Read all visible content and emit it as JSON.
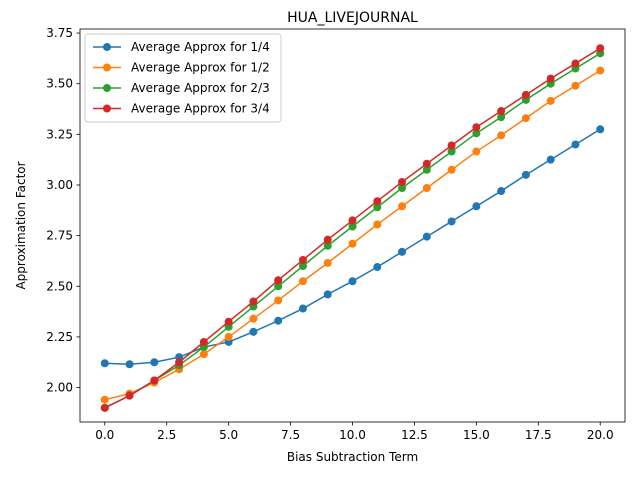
{
  "chart_data": {
    "type": "line",
    "title": "HUA_LIVEJOURNAL",
    "xlabel": "Bias Subtraction Term",
    "ylabel": "Approximation Factor",
    "xlim": [
      -1.0,
      21.0
    ],
    "ylim": [
      1.83,
      3.77
    ],
    "xticks": [
      0.0,
      2.5,
      5.0,
      7.5,
      10.0,
      12.5,
      15.0,
      17.5,
      20.0
    ],
    "xtick_labels": [
      "0.0",
      "2.5",
      "5.0",
      "7.5",
      "10.0",
      "12.5",
      "15.0",
      "17.5",
      "20.0"
    ],
    "yticks": [
      2.0,
      2.25,
      2.5,
      2.75,
      3.0,
      3.25,
      3.5,
      3.75
    ],
    "ytick_labels": [
      "2.00",
      "2.25",
      "2.50",
      "2.75",
      "3.00",
      "3.25",
      "3.50",
      "3.75"
    ],
    "grid": false,
    "legend_position": "upper left",
    "x": [
      0,
      1,
      2,
      3,
      4,
      5,
      6,
      7,
      8,
      9,
      10,
      11,
      12,
      13,
      14,
      15,
      16,
      17,
      18,
      19,
      20
    ],
    "series": [
      {
        "name": "Average Approx for 1/4",
        "color": "#1f77b4",
        "values": [
          2.12,
          2.115,
          2.125,
          2.15,
          2.2,
          2.225,
          2.275,
          2.33,
          2.39,
          2.46,
          2.525,
          2.595,
          2.67,
          2.745,
          2.82,
          2.895,
          2.97,
          3.05,
          3.125,
          3.2,
          3.275
        ]
      },
      {
        "name": "Average Approx for 1/2",
        "color": "#ff7f0e",
        "values": [
          1.94,
          1.97,
          2.025,
          2.09,
          2.165,
          2.25,
          2.34,
          2.43,
          2.525,
          2.615,
          2.71,
          2.805,
          2.895,
          2.985,
          3.075,
          3.165,
          3.245,
          3.33,
          3.415,
          3.49,
          3.565
        ]
      },
      {
        "name": "Average Approx for 2/3",
        "color": "#2ca02c",
        "values": [
          1.9,
          1.96,
          2.035,
          2.11,
          2.2,
          2.3,
          2.4,
          2.5,
          2.6,
          2.7,
          2.795,
          2.89,
          2.985,
          3.075,
          3.165,
          3.255,
          3.335,
          3.42,
          3.5,
          3.575,
          3.65
        ]
      },
      {
        "name": "Average Approx for 3/4",
        "color": "#d62728",
        "values": [
          1.9,
          1.96,
          2.035,
          2.125,
          2.225,
          2.325,
          2.425,
          2.53,
          2.63,
          2.73,
          2.825,
          2.92,
          3.015,
          3.105,
          3.195,
          3.285,
          3.365,
          3.445,
          3.525,
          3.6,
          3.675
        ]
      }
    ]
  }
}
